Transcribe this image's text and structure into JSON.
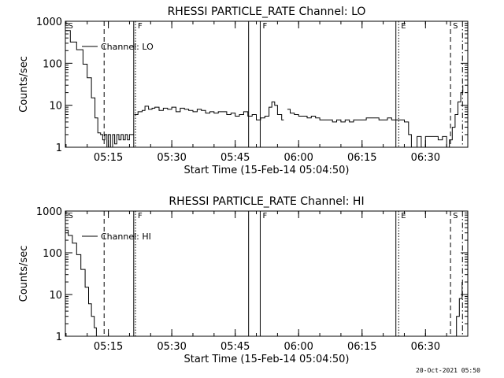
{
  "footer": {
    "stamp": "20-Oct-2021 05:50"
  },
  "chart_data": [
    {
      "type": "line",
      "title": "RHESSI PARTICLE_RATE Channel: LO",
      "xlabel": "Start Time (15-Feb-14 05:04:50)",
      "ylabel": "Counts/sec",
      "yscale": "log",
      "xlim": [
        "05:04:50",
        "06:40:00"
      ],
      "ylim": [
        1,
        1000
      ],
      "grid": false,
      "legend": {
        "position": "top-left",
        "entry": "Channel: LO"
      },
      "x_ticks": [
        "05:15",
        "05:30",
        "05:45",
        "06:00",
        "06:15",
        "06:30"
      ],
      "y_ticks": [
        "1",
        "10",
        "100",
        "1000"
      ],
      "markers": [
        {
          "time": "05:04:55",
          "label": "S",
          "style": "none"
        },
        {
          "time": "05:14:00",
          "label": "",
          "style": "dashed"
        },
        {
          "time": "05:21:25",
          "label": "F",
          "style": "dotted"
        },
        {
          "time": "05:21:00",
          "label": "",
          "style": "solid"
        },
        {
          "time": "05:48:10",
          "label": "",
          "style": "solid"
        },
        {
          "time": "05:50:55",
          "label": "F",
          "style": "solid"
        },
        {
          "time": "06:23:00",
          "label": "",
          "style": "solid"
        },
        {
          "time": "06:23:40",
          "label": "E",
          "style": "dotted"
        },
        {
          "time": "06:35:55",
          "label": "S",
          "style": "dashed"
        },
        {
          "time": "06:38:45",
          "label": "",
          "style": "dashdot"
        }
      ],
      "series": [
        {
          "segments": [
            {
              "t": [
                "05:04:50",
                "05:06:00",
                "05:07:30",
                "05:09:00",
                "05:10:00",
                "05:11:00",
                "05:11:50",
                "05:12:30",
                "05:13:10",
                "05:13:40",
                "05:14:10",
                "05:14:40",
                "05:15:00",
                "05:15:30",
                "05:16:00",
                "05:16:30",
                "05:17:00",
                "05:17:30",
                "05:18:00",
                "05:18:30",
                "05:19:00",
                "05:19:30",
                "05:20:00",
                "05:20:30",
                "05:21:00"
              ],
              "v": [
                600,
                320,
                210,
                95,
                45,
                15,
                5,
                2.2,
                2,
                1.5,
                2,
                1,
                2,
                1,
                2,
                1.2,
                2,
                1.5,
                2,
                1.5,
                2,
                1.5,
                2,
                2,
                2
              ]
            },
            {
              "t": [
                "05:21:10",
                "05:22:00",
                "05:23:00",
                "05:23:40",
                "05:24:30",
                "05:25:20",
                "05:26:00",
                "05:27:00",
                "05:28:00",
                "05:29:00",
                "05:30:00",
                "05:31:00",
                "05:32:00",
                "05:33:00",
                "05:34:00",
                "05:35:00",
                "05:36:00",
                "05:37:00",
                "05:38:00",
                "05:39:00",
                "05:40:00",
                "05:41:00",
                "05:42:00",
                "05:43:00",
                "05:44:00",
                "05:45:00",
                "05:46:00",
                "05:47:00",
                "05:48:00",
                "05:49:00",
                "05:50:00",
                "05:51:00",
                "05:52:00",
                "05:53:00",
                "05:53:40",
                "05:54:20",
                "05:55:00",
                "05:56:00",
                "05:56:30"
              ],
              "v": [
                6,
                7,
                7.5,
                9.5,
                8,
                8.5,
                9,
                7.5,
                8.5,
                8,
                9,
                7,
                8.5,
                8,
                7.5,
                7,
                8,
                7.5,
                6.5,
                7,
                6.5,
                7,
                7,
                6,
                6.5,
                5.5,
                6,
                7,
                5.5,
                6,
                4.5,
                5,
                5.5,
                9,
                12,
                10,
                6,
                4.5,
                4.5
              ]
            },
            {
              "t": [
                "05:57:20",
                "05:58:00",
                "05:59:00",
                "06:00:00",
                "06:01:00",
                "06:02:00",
                "06:03:00",
                "06:04:00",
                "06:05:00",
                "06:06:00",
                "06:07:00",
                "06:08:00",
                "06:09:00",
                "06:10:00",
                "06:11:00",
                "06:12:00",
                "06:13:00",
                "06:14:00",
                "06:15:00",
                "06:16:00",
                "06:17:00",
                "06:18:00",
                "06:19:00",
                "06:20:00",
                "06:21:00",
                "06:22:00",
                "06:23:00",
                "06:24:00",
                "06:25:00",
                "06:26:00",
                "06:26:40",
                "06:27:20",
                "06:28:00",
                "06:29:00",
                "06:30:00",
                "06:31:00",
                "06:32:00",
                "06:33:00",
                "06:34:00",
                "06:35:00",
                "06:35:40",
                "06:36:20",
                "06:37:00",
                "06:37:40",
                "06:38:20",
                "06:38:50"
              ],
              "v": [
                8,
                6.5,
                6,
                5.5,
                5.5,
                5,
                5.5,
                5,
                4.5,
                4.5,
                4.5,
                4,
                4.5,
                4,
                4.5,
                4,
                4.5,
                4.5,
                4.5,
                5,
                5,
                5,
                4.5,
                4.5,
                5,
                4.5,
                4.5,
                4.5,
                4,
                2,
                1,
                1,
                1.8,
                1,
                1.8,
                1.8,
                1.8,
                1.5,
                1.8,
                1,
                1.5,
                3,
                6,
                12,
                20,
                30
              ]
            }
          ]
        }
      ]
    },
    {
      "type": "line",
      "title": "RHESSI PARTICLE_RATE Channel: HI",
      "xlabel": "Start Time (15-Feb-14 05:04:50)",
      "ylabel": "Counts/sec",
      "yscale": "log",
      "xlim": [
        "05:04:50",
        "06:40:00"
      ],
      "ylim": [
        1,
        1000
      ],
      "grid": false,
      "legend": {
        "position": "top-left",
        "entry": "Channel: HI"
      },
      "x_ticks": [
        "05:15",
        "05:30",
        "05:45",
        "06:00",
        "06:15",
        "06:30"
      ],
      "y_ticks": [
        "1",
        "10",
        "100",
        "1000"
      ],
      "markers": [
        {
          "time": "05:04:55",
          "label": "S",
          "style": "none"
        },
        {
          "time": "05:14:00",
          "label": "",
          "style": "dashed"
        },
        {
          "time": "05:21:25",
          "label": "F",
          "style": "dotted"
        },
        {
          "time": "05:21:00",
          "label": "",
          "style": "solid"
        },
        {
          "time": "05:48:10",
          "label": "",
          "style": "solid"
        },
        {
          "time": "05:50:55",
          "label": "F",
          "style": "solid"
        },
        {
          "time": "06:23:00",
          "label": "",
          "style": "solid"
        },
        {
          "time": "06:23:40",
          "label": "E",
          "style": "dotted"
        },
        {
          "time": "06:35:55",
          "label": "S",
          "style": "dashed"
        },
        {
          "time": "06:38:45",
          "label": "",
          "style": "dashdot"
        }
      ],
      "series": [
        {
          "segments": [
            {
              "t": [
                "05:04:50",
                "05:05:30",
                "05:06:30",
                "05:07:30",
                "05:08:30",
                "05:09:30",
                "05:10:20",
                "05:11:00",
                "05:11:40",
                "05:12:10"
              ],
              "v": [
                350,
                260,
                170,
                90,
                40,
                15,
                6,
                3,
                1.6,
                1
              ]
            },
            {
              "t": [
                "06:36:40",
                "06:37:20",
                "06:38:00",
                "06:38:40"
              ],
              "v": [
                1,
                3,
                8,
                20
              ]
            }
          ]
        }
      ]
    }
  ]
}
